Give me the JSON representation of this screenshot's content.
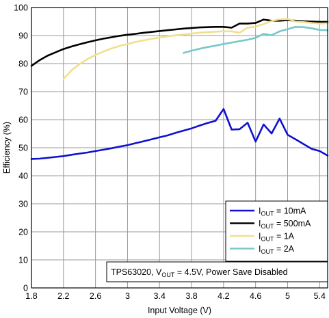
{
  "chart_data": {
    "type": "line",
    "xlabel": "Input Voltage (V)",
    "ylabel": "Efficiency (%)",
    "xlim": [
      1.8,
      5.5
    ],
    "ylim": [
      0,
      100
    ],
    "xticks": [
      1.8,
      2.2,
      2.6,
      3,
      3.4,
      3.8,
      4.2,
      4.6,
      5,
      5.4
    ],
    "xtick_labels": [
      "1.8",
      "2.2",
      "2.6",
      "3",
      "3.4",
      "3.8",
      "4.2",
      "4.6",
      "5",
      "5.4"
    ],
    "yticks": [
      0,
      10,
      20,
      30,
      40,
      50,
      60,
      70,
      80,
      90,
      100
    ],
    "ytick_labels": [
      "0",
      "10",
      "20",
      "30",
      "40",
      "50",
      "60",
      "70",
      "80",
      "90",
      "100"
    ],
    "grid": true,
    "legend_position": "bottom-right",
    "annotation": {
      "prefix": "TPS63020, V",
      "sub": "OUT",
      "suffix": " = 4.5V, Power Save Disabled"
    },
    "series": [
      {
        "name": "I_OUT = 10mA",
        "legend": {
          "main": "I",
          "sub": "OUT",
          "rest": " = 10mA"
        },
        "color": "#1010d0",
        "x": [
          1.8,
          1.9,
          2.0,
          2.1,
          2.2,
          2.3,
          2.4,
          2.5,
          2.6,
          2.7,
          2.8,
          2.9,
          3.0,
          3.1,
          3.2,
          3.3,
          3.4,
          3.5,
          3.6,
          3.7,
          3.8,
          3.9,
          4.0,
          4.1,
          4.2,
          4.3,
          4.4,
          4.5,
          4.6,
          4.7,
          4.8,
          4.9,
          5.0,
          5.1,
          5.2,
          5.3,
          5.4,
          5.5
        ],
        "y": [
          46.0,
          46.1,
          46.4,
          46.7,
          47.0,
          47.5,
          47.9,
          48.3,
          48.8,
          49.3,
          49.8,
          50.4,
          50.9,
          51.6,
          52.3,
          53.0,
          53.7,
          54.4,
          55.3,
          56.1,
          56.9,
          57.9,
          58.8,
          59.6,
          63.8,
          56.5,
          56.6,
          58.9,
          52.2,
          58.3,
          55.1,
          60.4,
          54.6,
          53.0,
          51.3,
          49.6,
          48.8,
          47.2
        ]
      },
      {
        "name": "I_OUT = 500mA",
        "legend": {
          "main": "I",
          "sub": "OUT",
          "rest": " = 500mA"
        },
        "color": "#000000",
        "x": [
          1.8,
          1.9,
          2.0,
          2.1,
          2.2,
          2.3,
          2.4,
          2.5,
          2.6,
          2.7,
          2.8,
          2.9,
          3.0,
          3.1,
          3.2,
          3.3,
          3.4,
          3.5,
          3.6,
          3.7,
          3.8,
          3.9,
          4.0,
          4.1,
          4.2,
          4.3,
          4.4,
          4.5,
          4.6,
          4.7,
          4.8,
          4.9,
          5.0,
          5.1,
          5.2,
          5.3,
          5.4,
          5.5
        ],
        "y": [
          79.2,
          81.2,
          82.8,
          84.0,
          85.2,
          86.1,
          86.9,
          87.6,
          88.3,
          88.9,
          89.4,
          89.9,
          90.3,
          90.6,
          91.0,
          91.3,
          91.6,
          91.9,
          92.2,
          92.5,
          92.7,
          92.9,
          93.0,
          93.1,
          93.1,
          92.8,
          94.3,
          94.3,
          94.5,
          95.7,
          95.3,
          95.3,
          95.5,
          95.3,
          95.1,
          95.0,
          94.9,
          94.9
        ]
      },
      {
        "name": "I_OUT = 1A",
        "legend": {
          "main": "I",
          "sub": "OUT",
          "rest": " = 1A"
        },
        "color": "#f0e08c",
        "x": [
          2.2,
          2.3,
          2.4,
          2.5,
          2.6,
          2.7,
          2.8,
          2.9,
          3.0,
          3.1,
          3.2,
          3.3,
          3.4,
          3.5,
          3.6,
          3.7,
          3.8,
          3.9,
          4.0,
          4.1,
          4.2,
          4.3,
          4.4,
          4.5,
          4.6,
          4.7,
          4.8,
          4.9,
          5.0,
          5.1,
          5.2,
          5.3,
          5.4,
          5.5
        ],
        "y": [
          74.5,
          77.6,
          79.8,
          81.6,
          83.1,
          84.3,
          85.4,
          86.3,
          87.0,
          87.7,
          88.3,
          88.8,
          89.3,
          89.7,
          90.1,
          90.4,
          90.7,
          91.0,
          91.2,
          91.4,
          91.5,
          91.5,
          91.0,
          92.8,
          93.2,
          94.1,
          95.2,
          95.8,
          95.9,
          95.0,
          94.8,
          94.5,
          94.3,
          94.4
        ]
      },
      {
        "name": "I_OUT = 2A",
        "legend": {
          "main": "I",
          "sub": "OUT",
          "rest": " = 2A"
        },
        "color": "#78c8c8",
        "x": [
          3.7,
          3.8,
          3.9,
          4.0,
          4.1,
          4.2,
          4.3,
          4.4,
          4.5,
          4.6,
          4.7,
          4.8,
          4.9,
          5.0,
          5.1,
          5.2,
          5.3,
          5.4,
          5.5
        ],
        "y": [
          83.8,
          84.6,
          85.3,
          85.9,
          86.4,
          87.0,
          87.5,
          88.0,
          88.5,
          89.2,
          90.6,
          90.1,
          91.5,
          92.3,
          93.1,
          93.0,
          92.6,
          92.0,
          91.9
        ]
      }
    ]
  }
}
